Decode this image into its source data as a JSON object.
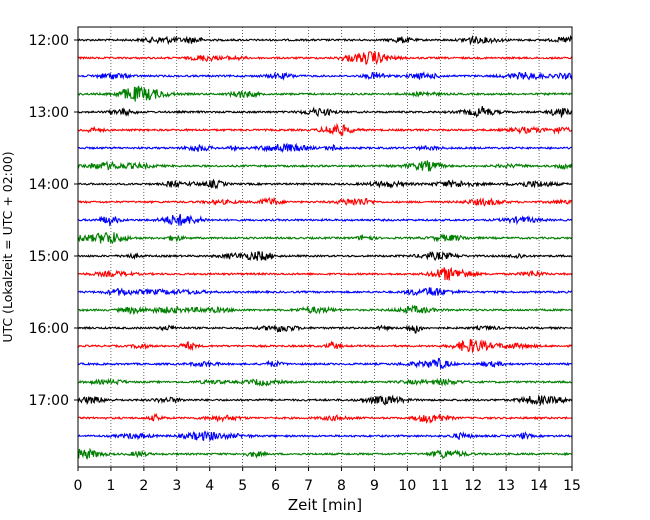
{
  "chart_data": {
    "type": "line",
    "xlabel": "Zeit  [min]",
    "ylabel": "UTC (Lokalzeit = UTC + 02:00)",
    "xlim": [
      0,
      15
    ],
    "x_ticks": [
      0,
      1,
      2,
      3,
      4,
      5,
      6,
      7,
      8,
      9,
      10,
      11,
      12,
      13,
      14,
      15
    ],
    "x_tick_labels": [
      "0",
      "1",
      "2",
      "3",
      "4",
      "5",
      "6",
      "7",
      "8",
      "9",
      "10",
      "11",
      "12",
      "13",
      "14",
      "15"
    ],
    "y_tick_labels": [
      "12:00",
      "13:00",
      "14:00",
      "15:00",
      "16:00",
      "17:00"
    ],
    "grid": "vertical dotted lines at each minute",
    "trace_interval_minutes": 15,
    "trace_start_times": [
      "12:00",
      "12:15",
      "12:30",
      "12:45",
      "13:00",
      "13:15",
      "13:30",
      "13:45",
      "14:00",
      "14:15",
      "14:30",
      "14:45",
      "15:00",
      "15:15",
      "15:30",
      "15:45",
      "16:00",
      "16:15",
      "16:30",
      "16:45",
      "17:00",
      "17:15",
      "17:30",
      "17:45"
    ],
    "trace_colors": [
      "#000000",
      "#ff0000",
      "#0000ff",
      "#007f00"
    ]
  }
}
